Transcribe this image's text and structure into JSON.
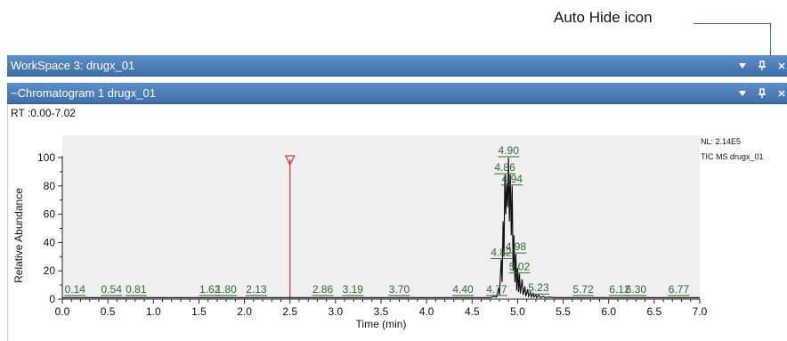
{
  "callout": {
    "label": "Auto Hide icon"
  },
  "workspace_bar": {
    "title": "WorkSpace 3: drugx_01",
    "dropdown_icon": "triangle-down-icon",
    "pin_icon": "pushpin-icon",
    "close_icon": "close-icon"
  },
  "chromatogram_bar": {
    "title": "~Chromatogram  1  drugx_01",
    "dropdown_icon": "triangle-down-icon",
    "pin_icon": "pushpin-icon",
    "close_icon": "close-icon"
  },
  "chromatogram": {
    "rt_range": "RT :0.00-7.02",
    "nl_line1": "NL: 2.14E5",
    "nl_line2": "TIC  MS  drugx_01"
  },
  "colors": {
    "title_bar": "#4a7dbb",
    "plot_background": "#efefef",
    "trace": "#111111",
    "peak_label": "#2f6b2f",
    "marker": "#e0312c"
  },
  "chart_data": {
    "type": "line",
    "xlabel": "Time (min)",
    "ylabel": "Relative Abundance",
    "xlim": [
      0.0,
      7.0
    ],
    "ylim": [
      0,
      100
    ],
    "x_ticks": [
      "0.0",
      "0.5",
      "1.0",
      "1.5",
      "2.0",
      "2.5",
      "3.0",
      "3.5",
      "4.0",
      "4.5",
      "5.0",
      "5.5",
      "6.0",
      "6.5",
      "7.0"
    ],
    "y_ticks": [
      "0",
      "20",
      "40",
      "60",
      "80",
      "100"
    ],
    "grid": false,
    "marker_rt": 2.5,
    "peak_labels": [
      {
        "text": "0.14",
        "x": 0.14,
        "y": 2
      },
      {
        "text": "0.54",
        "x": 0.54,
        "y": 2
      },
      {
        "text": "0.81",
        "x": 0.81,
        "y": 2
      },
      {
        "text": "1.62",
        "x": 1.62,
        "y": 2
      },
      {
        "text": "1.80",
        "x": 1.8,
        "y": 2
      },
      {
        "text": "2.13",
        "x": 2.13,
        "y": 2
      },
      {
        "text": "2.86",
        "x": 2.86,
        "y": 2
      },
      {
        "text": "3.19",
        "x": 3.19,
        "y": 2
      },
      {
        "text": "3.70",
        "x": 3.7,
        "y": 2
      },
      {
        "text": "4.40",
        "x": 4.4,
        "y": 2
      },
      {
        "text": "4.77",
        "x": 4.77,
        "y": 2
      },
      {
        "text": "4.82",
        "x": 4.82,
        "y": 28
      },
      {
        "text": "4.86",
        "x": 4.86,
        "y": 88
      },
      {
        "text": "4.90",
        "x": 4.9,
        "y": 100
      },
      {
        "text": "4.94",
        "x": 4.94,
        "y": 80
      },
      {
        "text": "4.98",
        "x": 4.98,
        "y": 32
      },
      {
        "text": "5.02",
        "x": 5.02,
        "y": 18
      },
      {
        "text": "5.23",
        "x": 5.23,
        "y": 3
      },
      {
        "text": "5.72",
        "x": 5.72,
        "y": 2
      },
      {
        "text": "6.12",
        "x": 6.12,
        "y": 2
      },
      {
        "text": "6.30",
        "x": 6.3,
        "y": 2
      },
      {
        "text": "6.77",
        "x": 6.77,
        "y": 2
      }
    ],
    "trace": [
      [
        0.0,
        1
      ],
      [
        4.7,
        1
      ],
      [
        4.74,
        2
      ],
      [
        4.77,
        1.5
      ],
      [
        4.79,
        8
      ],
      [
        4.8,
        3
      ],
      [
        4.82,
        28
      ],
      [
        4.83,
        12
      ],
      [
        4.84,
        55
      ],
      [
        4.85,
        30
      ],
      [
        4.86,
        88
      ],
      [
        4.87,
        60
      ],
      [
        4.88,
        82
      ],
      [
        4.89,
        65
      ],
      [
        4.9,
        100
      ],
      [
        4.91,
        55
      ],
      [
        4.92,
        88
      ],
      [
        4.93,
        45
      ],
      [
        4.94,
        80
      ],
      [
        4.95,
        20
      ],
      [
        4.96,
        45
      ],
      [
        4.97,
        12
      ],
      [
        4.98,
        32
      ],
      [
        4.99,
        6
      ],
      [
        5.0,
        22
      ],
      [
        5.01,
        5
      ],
      [
        5.02,
        18
      ],
      [
        5.03,
        4
      ],
      [
        5.05,
        14
      ],
      [
        5.06,
        3
      ],
      [
        5.08,
        9
      ],
      [
        5.09,
        2
      ],
      [
        5.11,
        7
      ],
      [
        5.12,
        2
      ],
      [
        5.14,
        5
      ],
      [
        5.15,
        1.5
      ],
      [
        5.17,
        4
      ],
      [
        5.18,
        1.5
      ],
      [
        5.2,
        3
      ],
      [
        5.21,
        1
      ],
      [
        5.23,
        3
      ],
      [
        5.25,
        1
      ],
      [
        5.28,
        2
      ],
      [
        5.3,
        1
      ],
      [
        5.35,
        1.5
      ],
      [
        5.4,
        1
      ],
      [
        7.0,
        1
      ]
    ]
  }
}
